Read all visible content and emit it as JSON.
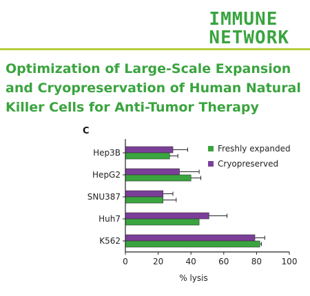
{
  "header": {
    "logo_line1": "IMMUNE",
    "logo_line2": "NETWORK",
    "title": "Optimization of Large-Scale Expansion and Cryopreservation of Human Natural Killer Cells for Anti-Tumor Therapy",
    "panel_label": "C"
  },
  "colors": {
    "brand_green": "#3aa43f",
    "rule": "#b3cd3a",
    "fresh": "#3aa43f",
    "cryo": "#7b3f99"
  },
  "chart_data": {
    "type": "bar",
    "orientation": "horizontal",
    "categories": [
      "Hep3B",
      "HepG2",
      "SNU387",
      "Huh7",
      "K562"
    ],
    "series": [
      {
        "name": "Freshly expanded",
        "color": "#3aa43f",
        "values": [
          27,
          40,
          23,
          45,
          82
        ],
        "errors": [
          5,
          6,
          8,
          0,
          1
        ]
      },
      {
        "name": "Cryopreserved",
        "color": "#7b3f99",
        "values": [
          29,
          33,
          23,
          51,
          79
        ],
        "errors": [
          9,
          12,
          6,
          11,
          6
        ]
      }
    ],
    "xlabel": "% lysis",
    "xlim": [
      0,
      100
    ],
    "xticks": [
      0,
      20,
      40,
      60,
      80,
      100
    ],
    "legend_position": "top-right",
    "grid": false
  }
}
